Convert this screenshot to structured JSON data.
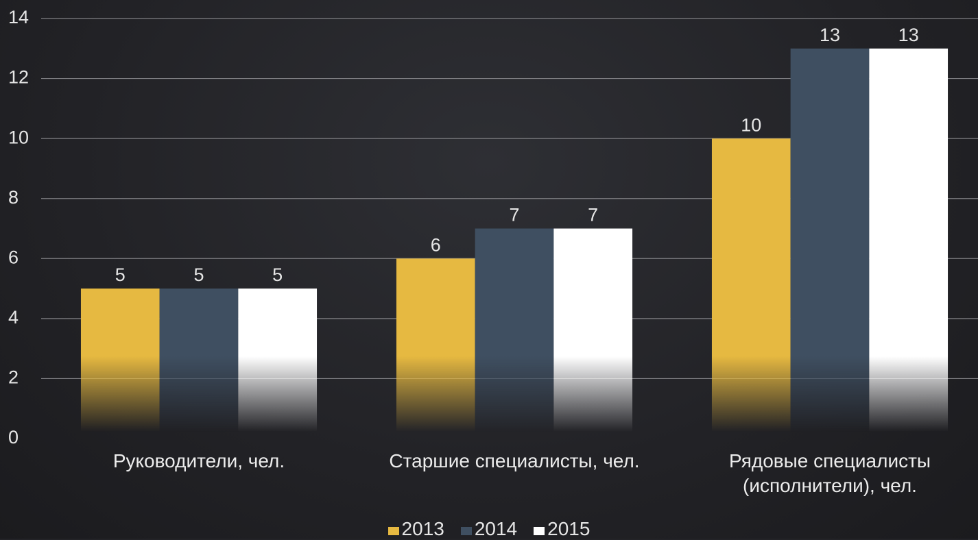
{
  "chart_data": {
    "type": "bar",
    "categories": [
      "Руководители, чел.",
      "Старшие специалисты, чел.",
      "Рядовые специалисты (исполнители), чел."
    ],
    "series": [
      {
        "name": "2013",
        "color": "#e6b941",
        "values": [
          5,
          6,
          10
        ]
      },
      {
        "name": "2014",
        "color": "#3f4f61",
        "values": [
          5,
          7,
          13
        ]
      },
      {
        "name": "2015",
        "color": "#ffffff",
        "values": [
          5,
          7,
          13
        ]
      }
    ],
    "ylim": [
      0,
      14
    ],
    "yticks": [
      0,
      2,
      4,
      6,
      8,
      10,
      12,
      14
    ],
    "grid": true,
    "legend": "bottom"
  }
}
